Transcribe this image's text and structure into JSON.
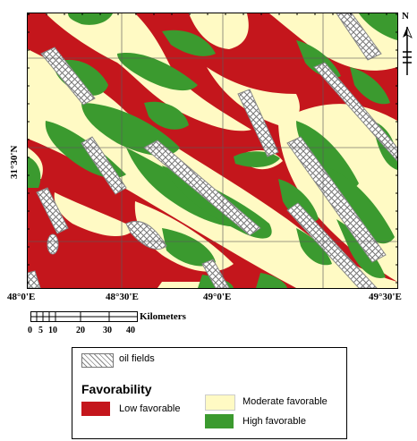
{
  "map": {
    "x_ticks": [
      "48°0'E",
      "48°30'E",
      "49°0'E",
      "49°30'E"
    ],
    "y_ticks": [
      "31°30'N"
    ],
    "colors": {
      "low": "#c4161c",
      "moderate": "#fffac4",
      "high": "#3b9a2f",
      "oil": "#9a9a9a"
    }
  },
  "scale_bar": {
    "unit_label": "Kilometers",
    "numbers": [
      "0",
      "5",
      "10",
      "20",
      "30",
      "40"
    ]
  },
  "north_arrow": {
    "label": "N",
    "icon": "north-arrow-icon"
  },
  "legend": {
    "oil_label": "oil fields",
    "title": "Favorability",
    "low_label": "Low favorable",
    "moderate_label": "Moderate favorable",
    "high_label": "High favorable"
  }
}
